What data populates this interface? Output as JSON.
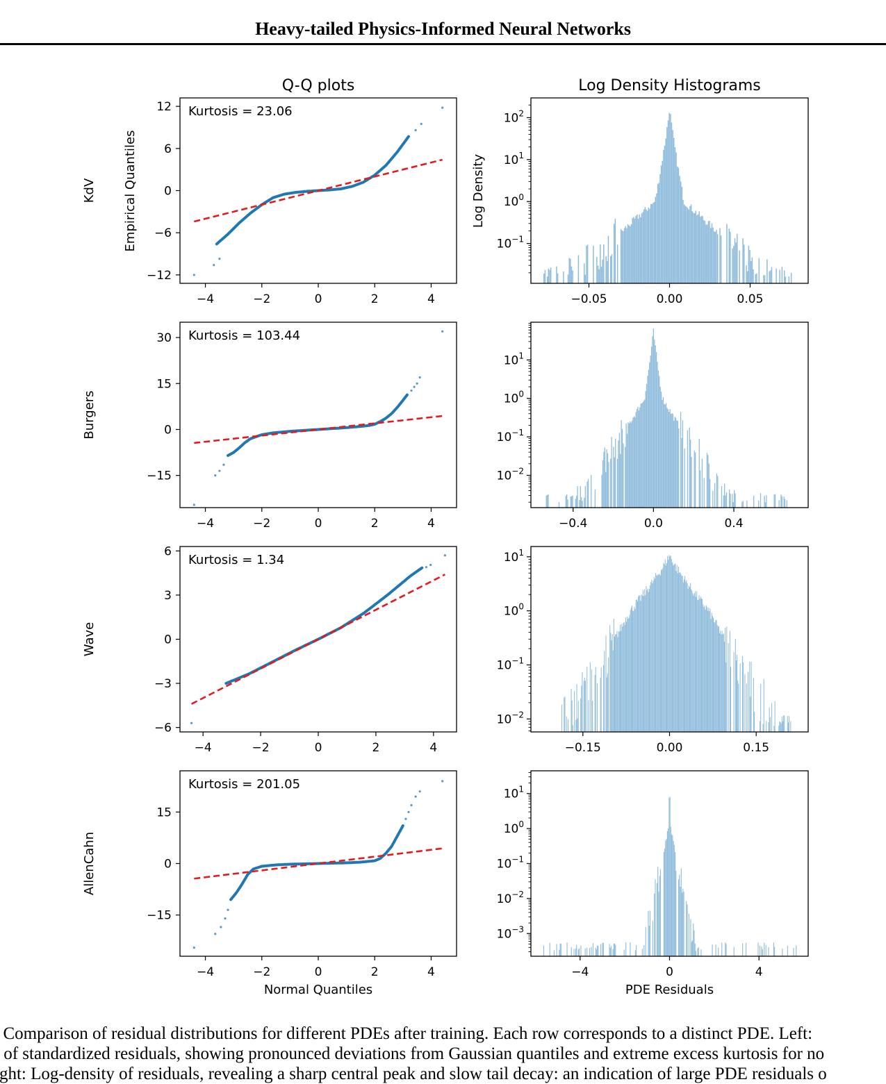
{
  "header": {
    "title": "Heavy-tailed Physics-Informed Neural Networks"
  },
  "figure": {
    "col_titles": [
      "Q-Q plots",
      "Log Density Histograms"
    ],
    "qq_ylabel": "Empirical Quantiles",
    "qq_xlabel": "Normal Quantiles",
    "hist_ylabel": "Log Density",
    "hist_xlabel": "PDE Residuals",
    "colors": {
      "points": "#1f77b4",
      "fit_line": "#e41a1c",
      "bars": "#8fbcdc"
    }
  },
  "chart_data": [
    {
      "type": "scatter",
      "panel": "qq",
      "row_label": "KdV",
      "annotation": "Kurtosis = 23.06",
      "xlim": [
        -4.9,
        4.9
      ],
      "ylim": [
        -13.2,
        13.2
      ],
      "xticks": [
        -4,
        -2,
        0,
        2,
        4
      ],
      "yticks": [
        -12,
        -6,
        0,
        6,
        12
      ],
      "xtick_labels": [
        "−4",
        "−2",
        "0",
        "2",
        "4"
      ],
      "ytick_labels": [
        "−12",
        "−6",
        "0",
        "6",
        "12"
      ],
      "fit_line": {
        "x": [
          -4.4,
          4.4
        ],
        "y": [
          -4.4,
          4.4
        ]
      },
      "curve": {
        "x": [
          -3.6,
          -3.2,
          -2.8,
          -2.4,
          -2.0,
          -1.6,
          -1.2,
          -0.8,
          -0.4,
          0.0,
          0.4,
          0.8,
          1.2,
          1.6,
          2.0,
          2.4,
          2.8,
          3.2
        ],
        "y": [
          -7.6,
          -6.2,
          -4.6,
          -3.2,
          -2.0,
          -1.0,
          -0.5,
          -0.25,
          -0.1,
          0.0,
          0.1,
          0.25,
          0.6,
          1.2,
          2.2,
          3.6,
          5.5,
          7.7
        ]
      },
      "outliers": {
        "x": [
          -4.4,
          -3.7,
          -3.5,
          3.45,
          3.65,
          4.4
        ],
        "y": [
          -12.0,
          -10.6,
          -9.7,
          8.6,
          9.5,
          11.8
        ]
      }
    },
    {
      "type": "bar",
      "panel": "hist",
      "row_label": "KdV",
      "scale": "log",
      "xlim": [
        -0.086,
        0.086
      ],
      "ylog_range": [
        -1.95,
        2.47
      ],
      "xticks": [
        -0.05,
        0.0,
        0.05
      ],
      "xtick_labels": [
        "−0.05",
        "0.00",
        "0.05"
      ],
      "ytick_exponents": [
        -1,
        0,
        1,
        2
      ],
      "center": 0.0,
      "peak": 180,
      "width_at_1": 0.009,
      "width_at_01": 0.038,
      "support": [
        -0.079,
        0.078
      ],
      "floor_exponent": -1.85,
      "bins": 220
    },
    {
      "type": "scatter",
      "panel": "qq",
      "row_label": "Burgers",
      "annotation": "Kurtosis = 103.44",
      "xlim": [
        -4.9,
        4.9
      ],
      "ylim": [
        -25.5,
        35.0
      ],
      "xticks": [
        -4,
        -2,
        0,
        2,
        4
      ],
      "yticks": [
        -15,
        0,
        15,
        30
      ],
      "xtick_labels": [
        "−4",
        "−2",
        "0",
        "2",
        "4"
      ],
      "ytick_labels": [
        "−15",
        "0",
        "15",
        "30"
      ],
      "fit_line": {
        "x": [
          -4.4,
          4.4
        ],
        "y": [
          -4.4,
          4.4
        ]
      },
      "curve": {
        "x": [
          -3.2,
          -3.0,
          -2.8,
          -2.6,
          -2.4,
          -2.0,
          -1.6,
          -1.0,
          -0.5,
          0.0,
          0.5,
          1.0,
          1.5,
          1.8,
          2.0,
          2.2,
          2.4,
          2.6,
          2.8,
          3.0,
          3.15
        ],
        "y": [
          -8.5,
          -7.5,
          -6.0,
          -4.3,
          -3.0,
          -1.7,
          -1.1,
          -0.6,
          -0.3,
          0.0,
          0.3,
          0.6,
          1.0,
          1.3,
          1.7,
          2.6,
          3.7,
          5.2,
          7.2,
          9.5,
          11.3
        ]
      },
      "outliers": {
        "x": [
          -4.4,
          -3.65,
          -3.5,
          -3.35,
          3.3,
          3.4,
          3.5,
          3.6,
          4.4
        ],
        "y": [
          -24.6,
          -15.0,
          -13.5,
          -11.5,
          12.7,
          13.9,
          15.0,
          17.0,
          32.0
        ]
      }
    },
    {
      "type": "bar",
      "panel": "hist",
      "row_label": "Burgers",
      "scale": "log",
      "xlim": [
        -0.61,
        0.77
      ],
      "ylog_range": [
        -2.84,
        1.98
      ],
      "xticks": [
        -0.4,
        0.0,
        0.4
      ],
      "xtick_labels": [
        "−0.4",
        "0.0",
        "0.4"
      ],
      "ytick_exponents": [
        -2,
        -1,
        0,
        1
      ],
      "center": 0.0,
      "peak": 65,
      "width_at_1": 0.045,
      "width_at_01": 0.16,
      "support": [
        -0.55,
        0.71
      ],
      "floor_exponent": -2.75,
      "bins": 260
    },
    {
      "type": "scatter",
      "panel": "qq",
      "row_label": "Wave",
      "annotation": "Kurtosis = 1.34",
      "xlim": [
        -4.8,
        4.8
      ],
      "ylim": [
        -6.3,
        6.3
      ],
      "xticks": [
        -4,
        -2,
        0,
        2,
        4
      ],
      "yticks": [
        -6,
        -3,
        0,
        3,
        6
      ],
      "xtick_labels": [
        "−4",
        "−2",
        "0",
        "2",
        "4"
      ],
      "ytick_labels": [
        "−6",
        "−3",
        "0",
        "3",
        "6"
      ],
      "fit_line": {
        "x": [
          -4.4,
          4.4
        ],
        "y": [
          -4.4,
          4.4
        ]
      },
      "curve": {
        "x": [
          -3.2,
          -2.4,
          -1.6,
          -0.8,
          0.0,
          0.8,
          1.6,
          2.4,
          3.2,
          3.6
        ],
        "y": [
          -3.0,
          -2.35,
          -1.55,
          -0.75,
          0.0,
          0.8,
          1.8,
          3.0,
          4.3,
          4.85
        ]
      },
      "outliers": {
        "x": [
          -4.4,
          3.75,
          3.9,
          4.4
        ],
        "y": [
          -5.7,
          4.9,
          5.05,
          5.7
        ]
      }
    },
    {
      "type": "bar",
      "panel": "hist",
      "row_label": "Wave",
      "scale": "log",
      "xlim": [
        -0.24,
        0.24
      ],
      "ylog_range": [
        -2.24,
        1.19
      ],
      "xticks": [
        -0.15,
        0.0,
        0.15
      ],
      "xtick_labels": [
        "−0.15",
        "0.00",
        "0.15"
      ],
      "ytick_exponents": [
        -2,
        -1,
        0,
        1
      ],
      "center": 0.0,
      "peak": 11,
      "width_at_1": 0.068,
      "width_at_01": 0.12,
      "support": [
        -0.19,
        0.22
      ],
      "floor_exponent": -2.2,
      "bins": 300
    },
    {
      "type": "scatter",
      "panel": "qq",
      "row_label": "AllenCahn",
      "annotation": "Kurtosis = 201.05",
      "xlim": [
        -4.9,
        4.9
      ],
      "ylim": [
        -27.0,
        27.0
      ],
      "xticks": [
        -4,
        -2,
        0,
        2,
        4
      ],
      "yticks": [
        -15,
        0,
        15
      ],
      "xtick_labels": [
        "−4",
        "−2",
        "0",
        "2",
        "4"
      ],
      "ytick_labels": [
        "−15",
        "0",
        "15"
      ],
      "fit_line": {
        "x": [
          -4.4,
          4.4
        ],
        "y": [
          -4.4,
          4.4
        ]
      },
      "curve": {
        "x": [
          -3.1,
          -2.9,
          -2.7,
          -2.5,
          -2.3,
          -2.0,
          -1.5,
          -1.0,
          -0.5,
          0.0,
          0.5,
          1.0,
          1.5,
          2.0,
          2.2,
          2.4,
          2.6,
          2.8,
          3.0
        ],
        "y": [
          -10.5,
          -8.5,
          -6.0,
          -3.2,
          -1.6,
          -0.8,
          -0.4,
          -0.2,
          -0.1,
          0.0,
          0.1,
          0.2,
          0.4,
          0.8,
          1.5,
          3.0,
          5.0,
          8.0,
          11.0
        ]
      },
      "outliers": {
        "x": [
          -4.4,
          -3.65,
          -3.45,
          -3.3,
          -3.2,
          3.1,
          3.2,
          3.3,
          3.45,
          3.6,
          4.4
        ],
        "y": [
          -24.5,
          -20.5,
          -18.5,
          -16.0,
          -13.5,
          13.0,
          15.0,
          17.0,
          19.5,
          21.0,
          24.0
        ]
      }
    },
    {
      "type": "bar",
      "panel": "hist",
      "row_label": "AllenCahn",
      "scale": "log",
      "xlim": [
        -6.2,
        6.2
      ],
      "ylog_range": [
        -3.65,
        1.65
      ],
      "xticks": [
        -4,
        0,
        4
      ],
      "xtick_labels": [
        "−4",
        "0",
        "4"
      ],
      "ytick_exponents": [
        -3,
        -2,
        -1,
        0,
        1
      ],
      "center": 0.0,
      "peak": 30,
      "width_at_1": 0.06,
      "width_at_01": 0.35,
      "support": [
        -5.8,
        5.8
      ],
      "floor_exponent": -3.55,
      "bins": 300
    }
  ],
  "caption": {
    "line1": ". Comparison of residual distributions for different PDEs after training. Each row corresponds to a distinct PDE. Left:",
    "line2": "t of standardized residuals, showing pronounced deviations from Gaussian quantiles and extreme excess kurtosis for no",
    "line3": "ight: Log-density of residuals, revealing a sharp central peak and slow tail decay: an indication of large PDE residuals o"
  }
}
